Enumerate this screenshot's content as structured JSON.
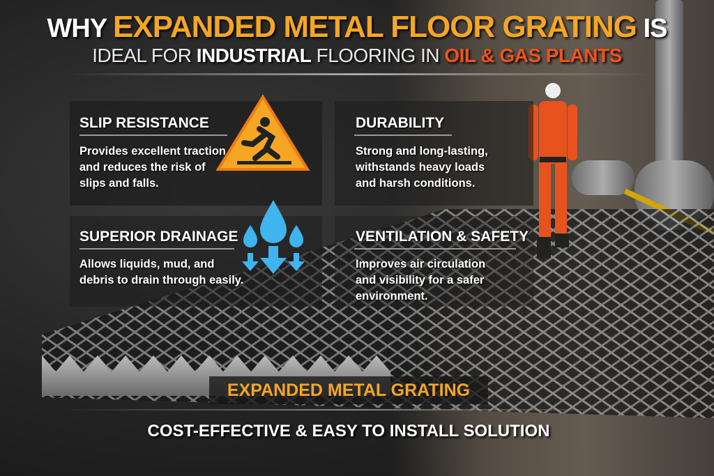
{
  "title": {
    "line1_pre": "WHY",
    "line1_highlight": "EXPANDED METAL FLOOR GRATING",
    "line1_post": "IS",
    "line2_pre": "IDEAL FOR",
    "line2_bold": "INDUSTRIAL",
    "line2_mid": "FLOORING IN",
    "line2_highlight": "OIL & GAS PLANTS"
  },
  "features": [
    {
      "heading": "SLIP RESISTANCE",
      "text": "Provides excellent traction and reduces the risk of slips and falls.",
      "icon": "slip-warning-icon"
    },
    {
      "heading": "DURABILITY",
      "text": "Strong and long-lasting, withstands heavy loads and harsh conditions."
    },
    {
      "heading": "SUPERIOR DRAINAGE",
      "text": "Allows liquids, mud, and debris to drain through easily.",
      "icon": "water-drops-icon"
    },
    {
      "heading": "VENTILATION & SAFETY",
      "text": "Improves air circulation and visibility for a safer environment."
    }
  ],
  "product_label": "EXPANDED METAL GRATING",
  "footer": "COST-EFFECTIVE & EASY TO INSTALL SOLUTION",
  "colors": {
    "orange": "#f5a623",
    "red_orange": "#f0531c"
  }
}
